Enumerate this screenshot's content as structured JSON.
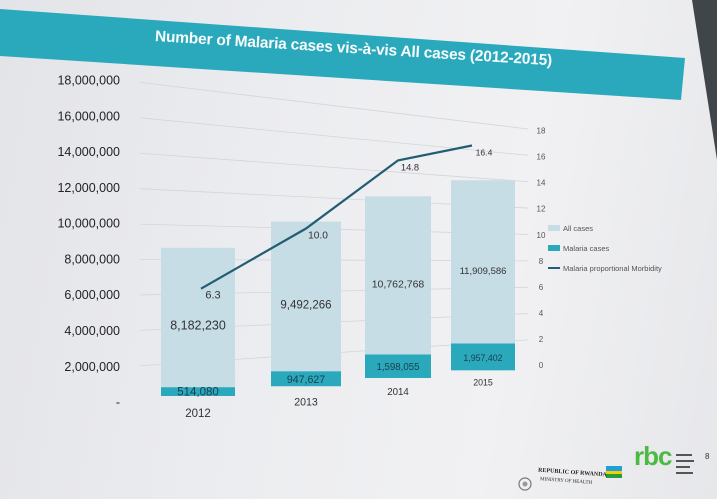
{
  "slide": {
    "title": "Number of Malaria cases vis-à-vis All cases (2012-2015)",
    "page_number": "8",
    "footer": {
      "org_name": "REPUBLIC OF RWANDA",
      "org_sub": "MINISTRY OF HEALTH",
      "logo_text": "rbc"
    }
  },
  "colors": {
    "title_band": "#2aa9bd",
    "all_cases": "#c7dde6",
    "malaria_cases": "#2aa9bd",
    "morbidity_line": "#235d74"
  },
  "chart_data": {
    "type": "bar",
    "title": "Number of Malaria cases vis-à-vis All cases (2012-2015)",
    "categories": [
      "2012",
      "2013",
      "2014",
      "2015"
    ],
    "series": [
      {
        "name": "All cases",
        "type": "bar",
        "axis": "left",
        "values": [
          8182230,
          9492266,
          10762768,
          11909586
        ],
        "labels": [
          "8,182,230",
          "9,492,266",
          "10,762,768",
          "11,909,586"
        ]
      },
      {
        "name": "Malaria cases",
        "type": "bar",
        "axis": "left",
        "values": [
          514080,
          947627,
          1598055,
          1957402
        ],
        "labels": [
          "514,080",
          "947,627",
          "1,598,055",
          "1,957,402"
        ]
      },
      {
        "name": "Malaria proportional Morbidity",
        "type": "line",
        "axis": "right",
        "values": [
          6.3,
          10.0,
          14.8,
          16.4
        ],
        "labels": [
          "6.3",
          "10.0",
          "14.8",
          "16.4"
        ]
      }
    ],
    "stacked": true,
    "y_left": {
      "ylim": [
        0,
        18000000
      ],
      "ticks": [
        "-",
        "2,000,000",
        "4,000,000",
        "6,000,000",
        "8,000,000",
        "10,000,000",
        "12,000,000",
        "14,000,000",
        "16,000,000",
        "18,000,000"
      ]
    },
    "y_right": {
      "ylim": [
        0,
        18
      ],
      "ticks": [
        "0",
        "2",
        "4",
        "6",
        "8",
        "10",
        "12",
        "14",
        "16",
        "18"
      ]
    },
    "legend": [
      "All cases",
      "Malaria cases",
      "Malaria proportional Morbidity"
    ],
    "legend_position": "right",
    "grid": true
  }
}
